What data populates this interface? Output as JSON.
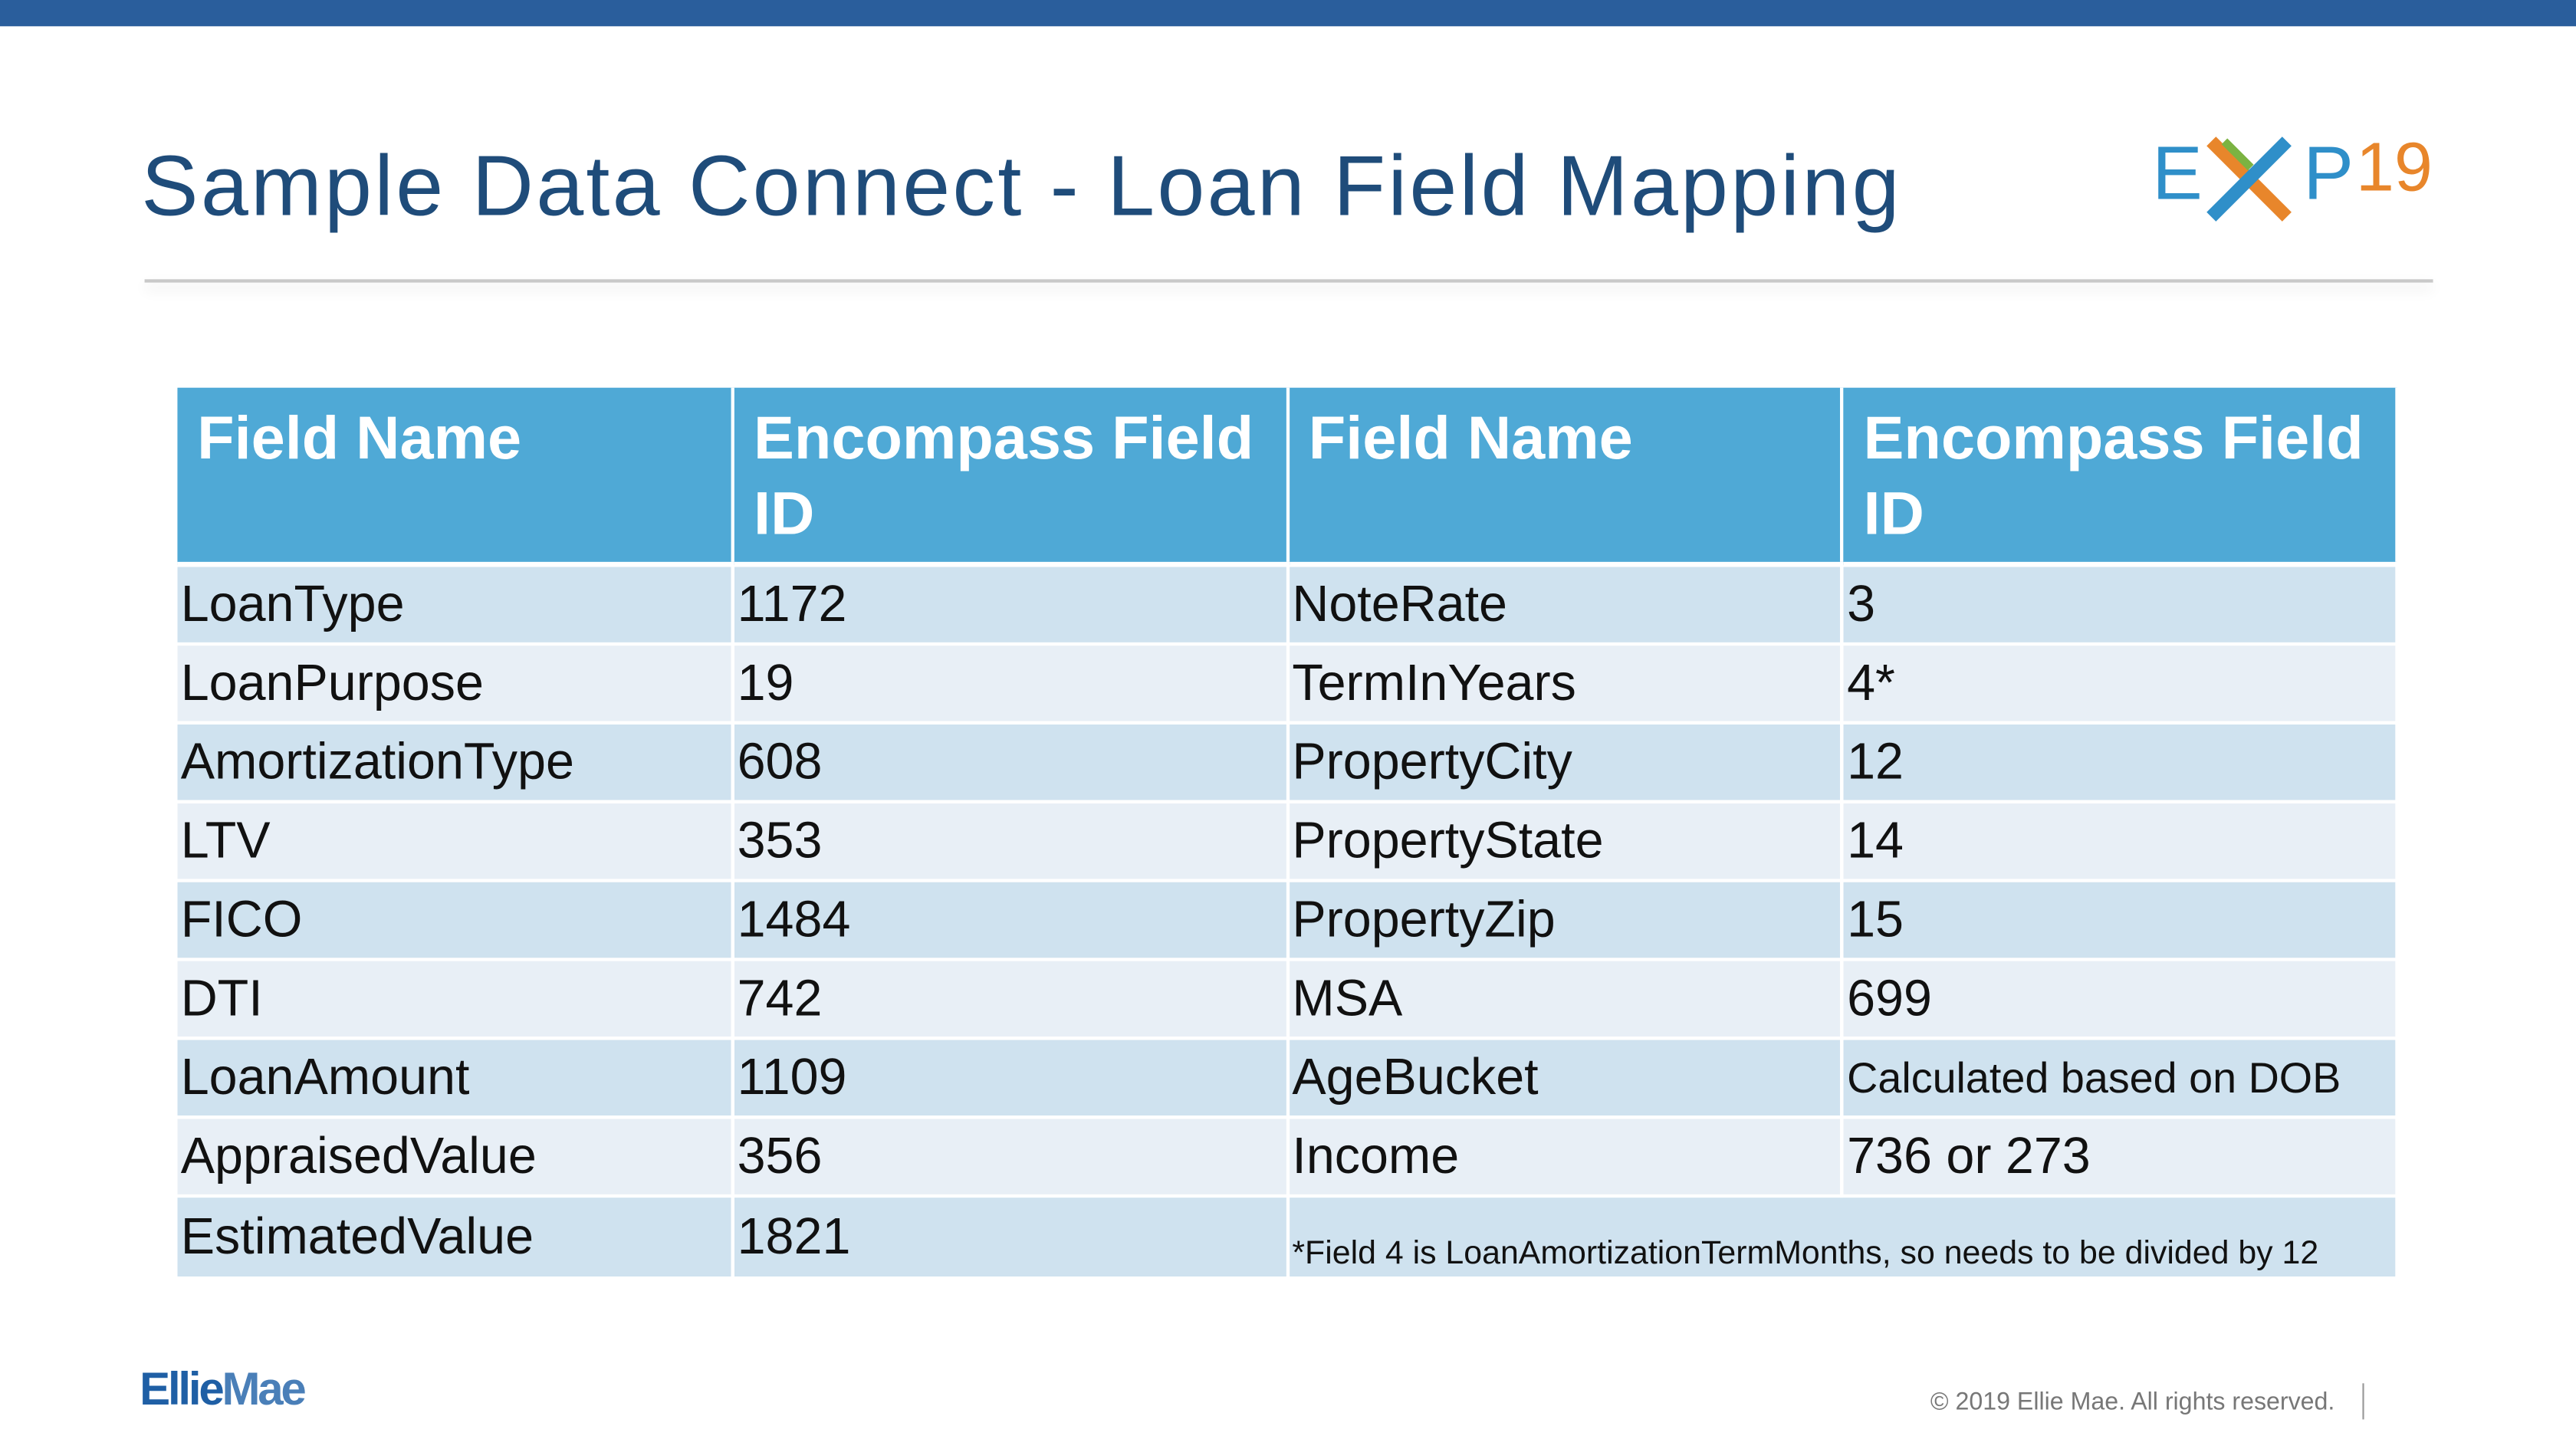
{
  "header": {
    "title": "Sample Data Connect - Loan Field Mapping",
    "logo": {
      "left": "E",
      "right": "P",
      "number": "19"
    }
  },
  "table": {
    "columns": [
      "Field Name",
      "Encompass Field ID",
      "Field Name",
      "Encompass Field ID"
    ],
    "rows": [
      [
        "LoanType",
        "1172",
        "NoteRate",
        "3"
      ],
      [
        "LoanPurpose",
        "19",
        "TermInYears",
        "4*"
      ],
      [
        "AmortizationType",
        "608",
        "PropertyCity",
        "12"
      ],
      [
        "LTV",
        "353",
        "PropertyState",
        "14"
      ],
      [
        "FICO",
        "1484",
        "PropertyZip",
        "15"
      ],
      [
        "DTI",
        "742",
        "MSA",
        "699"
      ],
      [
        "LoanAmount",
        "1109",
        "AgeBucket",
        "Calculated based on DOB"
      ],
      [
        "AppraisedValue",
        "356",
        "Income",
        "736 or 273"
      ],
      [
        "EstimatedValue",
        "1821"
      ]
    ],
    "note": "*Field 4 is LoanAmortizationTermMonths, so needs to be divided by 12"
  },
  "footer": {
    "brand": {
      "first": "Ellie",
      "second": "Mae"
    },
    "copyright": "© 2019 Ellie Mae. All rights reserved."
  }
}
